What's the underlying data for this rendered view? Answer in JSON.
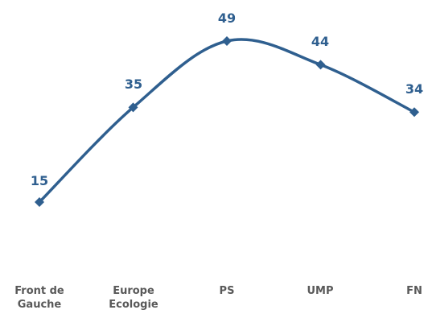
{
  "chart_data": {
    "type": "line",
    "categories": [
      "Front de Gauche",
      "Europe Ecologie",
      "PS",
      "UMP",
      "FN"
    ],
    "category_lines": [
      [
        "Front de",
        "Gauche"
      ],
      [
        "Europe",
        "Ecologie"
      ],
      [
        "PS"
      ],
      [
        "UMP"
      ],
      [
        "FN"
      ]
    ],
    "series": [
      {
        "values": [
          15,
          35,
          49,
          44,
          34
        ]
      }
    ],
    "data_labels": [
      "15",
      "35",
      "49",
      "44",
      "34"
    ],
    "title": "",
    "xlabel": "",
    "ylabel": "",
    "ylim": [
      0,
      49
    ],
    "grid": false,
    "legend": "none",
    "colors": {
      "line": "#2f5f8f",
      "marker": "#2f5f8f",
      "data_label": "#2f5f8f",
      "tick_label": "#595959"
    }
  }
}
